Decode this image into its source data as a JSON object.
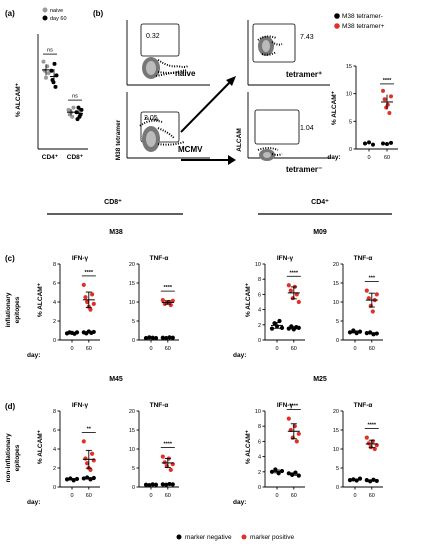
{
  "colors": {
    "negative": "#000000",
    "positive": "#e0302a",
    "naive": "#9a9a9a",
    "day60": "#000000"
  },
  "panel_a": {
    "label": "(a)",
    "legend": [
      "naive",
      "day 60"
    ],
    "ylabel": "% ALCAM⁺",
    "categories": [
      "CD4⁺",
      "CD8⁺"
    ],
    "significance": [
      "ns",
      "ns"
    ]
  },
  "panel_b": {
    "label": "(b)",
    "plots": {
      "naive": {
        "value": "0.32",
        "label": "naive"
      },
      "mcmv": {
        "value": "2.05",
        "label": "MCMV"
      },
      "tetramer_pos": {
        "value": "7.43",
        "label": "tetramer⁺"
      },
      "tetramer_neg": {
        "value": "1.04",
        "label": "tetramer⁻"
      }
    },
    "y_axis_left": "M38 tetramer",
    "y_axis_right": "ALCAM",
    "legend": [
      "M38 tetramer-",
      "M38 tetramer+"
    ],
    "ylabel": "% ALCAM⁺",
    "significance": "****",
    "day_label": "day:",
    "x_ticks": [
      "0",
      "60"
    ]
  },
  "group_headers": {
    "cd8": "CD8⁺",
    "cd4": "CD4⁺"
  },
  "panel_c": {
    "label": "(c)",
    "row_label": [
      "inflationary",
      "epitopes"
    ],
    "ylabel": "% ALCAM⁺",
    "day_label": "day:",
    "epitopes": [
      "M38",
      "M09"
    ]
  },
  "panel_d": {
    "label": "(d)",
    "row_label": [
      "non-inflationary",
      "epitopes"
    ],
    "ylabel": "% ALCAM⁺",
    "day_label": "day:",
    "epitopes": [
      "M45",
      "M25"
    ]
  },
  "bottom_legend": [
    "marker negative",
    "marker positive"
  ],
  "chart_data": [
    {
      "id": "a",
      "type": "scatter",
      "categories": [
        "CD4⁺",
        "CD8⁺"
      ],
      "ylim": [
        0,
        2.5
      ],
      "yticks": [
        0,
        0.5,
        1,
        1.5,
        2,
        2.5
      ],
      "series": [
        {
          "name": "naive",
          "values": [
            [
              1.9,
              1.7,
              1.55,
              1.8,
              1.65
            ],
            [
              0.85,
              0.75,
              0.8,
              0.7,
              0.9
            ]
          ]
        },
        {
          "name": "day 60",
          "values": [
            [
              1.7,
              1.5,
              1.45,
              1.85,
              1.35,
              1.6
            ],
            [
              0.8,
              0.65,
              0.9,
              0.7,
              0.75,
              0.85
            ]
          ]
        }
      ]
    },
    {
      "id": "b",
      "type": "scatter",
      "x": [
        "0",
        "60"
      ],
      "ylim": [
        0,
        15
      ],
      "yticks": [
        0,
        5,
        10,
        15
      ],
      "series": [
        {
          "name": "M38 tetramer-",
          "values": [
            [
              1.0,
              1.2,
              0.8
            ],
            [
              1.0,
              0.9,
              1.1
            ]
          ]
        },
        {
          "name": "M38 tetramer+",
          "values": [
            [],
            [
              10.5,
              9.0,
              7.5,
              8.0,
              6.5,
              9.5
            ]
          ]
        }
      ]
    },
    {
      "id": "c-m38-ifn",
      "type": "scatter",
      "title": "IFN-γ",
      "significance": "****",
      "x": [
        "0",
        "60"
      ],
      "ylim": [
        0,
        8
      ],
      "yticks": [
        0,
        2,
        4,
        6,
        8
      ],
      "negative": [
        [
          0.7,
          0.8,
          0.75,
          0.65,
          0.8
        ],
        [
          0.8,
          0.7,
          0.9,
          0.75,
          0.85
        ]
      ],
      "positive": [
        [],
        [
          5.8,
          4.5,
          4.0,
          3.5,
          3.2,
          4.8,
          3.8
        ]
      ]
    },
    {
      "id": "c-m38-tnf",
      "type": "scatter",
      "title": "TNF-α",
      "significance": "****",
      "x": [
        "0",
        "60"
      ],
      "ylim": [
        0,
        20
      ],
      "yticks": [
        0,
        5,
        10,
        15,
        20
      ],
      "negative": [
        [
          0.5,
          0.7,
          0.6,
          0.5
        ],
        [
          0.6,
          0.5,
          0.7,
          0.6
        ]
      ],
      "positive": [
        [],
        [
          10.5,
          9.5,
          9.8,
          10.0,
          9.2,
          10.3
        ]
      ]
    },
    {
      "id": "c-m09-ifn",
      "type": "scatter",
      "title": "IFN-γ",
      "significance": "****",
      "x": [
        "0",
        "60"
      ],
      "ylim": [
        0,
        10
      ],
      "yticks": [
        0,
        2,
        4,
        6,
        8,
        10
      ],
      "negative": [
        [
          1.5,
          2.2,
          1.8,
          2.5,
          1.6
        ],
        [
          1.5,
          1.8,
          1.4,
          1.7,
          1.6
        ]
      ],
      "positive": [
        [],
        [
          7.2,
          6.5,
          5.5,
          7.0,
          6.0,
          5.0
        ]
      ]
    },
    {
      "id": "c-m09-tnf",
      "type": "scatter",
      "title": "TNF-α",
      "significance": "***",
      "x": [
        "0",
        "60"
      ],
      "ylim": [
        0,
        20
      ],
      "yticks": [
        0,
        5,
        10,
        15,
        20
      ],
      "negative": [
        [
          2.0,
          2.5,
          1.8,
          2.2
        ],
        [
          1.8,
          2.0,
          1.5,
          1.7
        ]
      ],
      "positive": [
        [],
        [
          13.0,
          11.0,
          9.0,
          7.5,
          10.5,
          12.0
        ]
      ]
    },
    {
      "id": "d-m45-ifn",
      "type": "scatter",
      "title": "IFN-γ",
      "significance": "**",
      "x": [
        "0",
        "60"
      ],
      "ylim": [
        0,
        8
      ],
      "yticks": [
        0,
        2,
        4,
        6,
        8
      ],
      "negative": [
        [
          0.8,
          0.9,
          0.7,
          0.85
        ],
        [
          0.9,
          1.0,
          0.8,
          0.95
        ]
      ],
      "positive": [
        [],
        [
          4.8,
          3.0,
          2.5,
          2.0,
          1.8,
          3.5,
          2.8
        ]
      ]
    },
    {
      "id": "d-m45-tnf",
      "type": "scatter",
      "title": "TNF-α",
      "significance": "****",
      "x": [
        "0",
        "60"
      ],
      "ylim": [
        0,
        20
      ],
      "yticks": [
        0,
        5,
        10,
        15,
        20
      ],
      "negative": [
        [
          0.6,
          0.5,
          0.7,
          0.6
        ],
        [
          0.7,
          0.6,
          0.8,
          0.7
        ]
      ],
      "positive": [
        [],
        [
          8.0,
          6.5,
          5.5,
          7.5,
          4.5,
          6.0
        ]
      ]
    },
    {
      "id": "d-m25-ifn",
      "type": "scatter",
      "title": "IFN-γ",
      "significance": "****",
      "x": [
        "0",
        "60"
      ],
      "ylim": [
        0,
        10
      ],
      "yticks": [
        0,
        2,
        4,
        6,
        8,
        10
      ],
      "negative": [
        [
          2.0,
          2.3,
          1.8,
          2.1
        ],
        [
          1.8,
          1.6,
          1.9,
          1.5
        ]
      ],
      "positive": [
        [],
        [
          9.0,
          7.5,
          6.5,
          8.0,
          6.0,
          7.0
        ]
      ]
    },
    {
      "id": "d-m25-tnf",
      "type": "scatter",
      "title": "TNF-α",
      "significance": "****",
      "x": [
        "0",
        "60"
      ],
      "ylim": [
        0,
        20
      ],
      "yticks": [
        0,
        5,
        10,
        15,
        20
      ],
      "negative": [
        [
          1.8,
          2.0,
          1.7,
          2.2
        ],
        [
          1.8,
          1.5,
          1.9,
          1.6
        ]
      ],
      "positive": [
        [],
        [
          13.0,
          11.5,
          10.5,
          12.0,
          10.0,
          11.0
        ]
      ]
    }
  ]
}
